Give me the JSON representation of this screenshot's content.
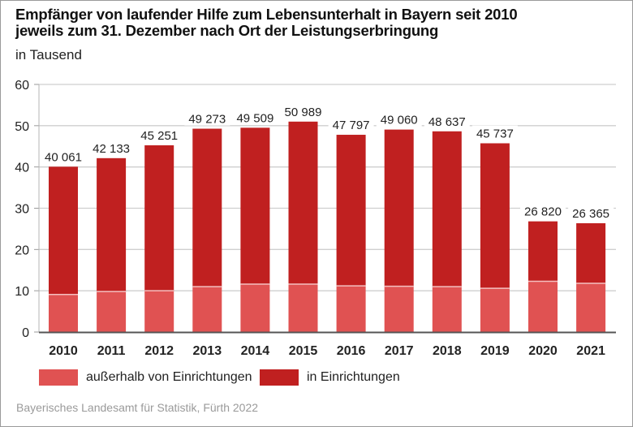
{
  "chart_data": {
    "type": "bar",
    "stacked": true,
    "title": "Empfänger von laufender Hilfe zum Lebensunterhalt in Bayern seit 2010",
    "title_line2": "jeweils zum 31. Dezember nach Ort der Leistungserbringung",
    "subtitle": "in Tausend",
    "xlabel": "",
    "ylabel": "",
    "ylim": [
      0,
      60
    ],
    "yticks": [
      0,
      10,
      20,
      30,
      40,
      50,
      60
    ],
    "grid": true,
    "categories": [
      "2010",
      "2011",
      "2012",
      "2013",
      "2014",
      "2015",
      "2016",
      "2017",
      "2018",
      "2019",
      "2020",
      "2021"
    ],
    "series": [
      {
        "name": "außerhalb von Einrichtungen",
        "color": "#E05252",
        "values": [
          9.1,
          9.8,
          10.0,
          11.0,
          11.6,
          11.6,
          11.2,
          11.1,
          11.0,
          10.6,
          12.3,
          11.8
        ]
      },
      {
        "name": "in Einrichtungen",
        "color": "#C02020",
        "values": [
          30.961,
          32.333,
          35.251,
          38.273,
          37.909,
          39.389,
          36.597,
          37.96,
          37.637,
          35.137,
          14.52,
          14.565
        ]
      }
    ],
    "totals": [
      40.061,
      42.133,
      45.251,
      49.273,
      49.509,
      50.989,
      47.797,
      49.06,
      48.637,
      45.737,
      26.82,
      26.365
    ],
    "total_labels": [
      "40 061",
      "42 133",
      "45 251",
      "49 273",
      "49 509",
      "50 989",
      "47 797",
      "49 060",
      "48 637",
      "45 737",
      "26 820",
      "26 365"
    ],
    "legend_position": "bottom"
  },
  "source": "Bayerisches Landesamt für Statistik, Fürth 2022"
}
